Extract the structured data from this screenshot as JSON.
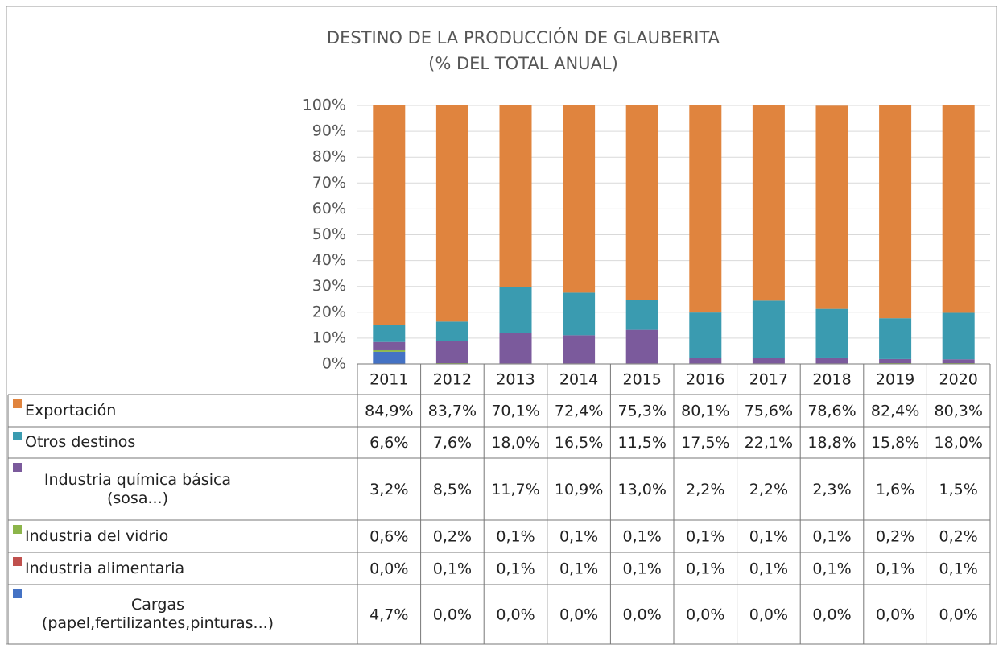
{
  "chart_data": {
    "type": "bar",
    "title": "DESTINO DE LA PRODUCCIÓN DE GLAUBERITA",
    "subtitle": "(% DEL TOTAL ANUAL)",
    "categories": [
      "2011",
      "2012",
      "2013",
      "2014",
      "2015",
      "2016",
      "2017",
      "2018",
      "2019",
      "2020"
    ],
    "ylim": [
      0,
      100
    ],
    "yticks": [
      {
        "value": 0,
        "label": "0%"
      },
      {
        "value": 10,
        "label": "10%"
      },
      {
        "value": 20,
        "label": "20%"
      },
      {
        "value": 30,
        "label": "30%"
      },
      {
        "value": 40,
        "label": "40%"
      },
      {
        "value": 50,
        "label": "50%"
      },
      {
        "value": 60,
        "label": "60%"
      },
      {
        "value": 70,
        "label": "70%"
      },
      {
        "value": 80,
        "label": "80%"
      },
      {
        "value": 90,
        "label": "90%"
      },
      {
        "value": 100,
        "label": "100%"
      }
    ],
    "grid": true,
    "stacked": true,
    "series": [
      {
        "name": "Exportación",
        "color": "#e0843e",
        "values": [
          84.9,
          83.7,
          70.1,
          72.4,
          75.3,
          80.1,
          75.6,
          78.6,
          82.4,
          80.3
        ],
        "value_labels": [
          "84,9%",
          "83,7%",
          "70,1%",
          "72,4%",
          "75,3%",
          "80,1%",
          "75,6%",
          "78,6%",
          "82,4%",
          "80,3%"
        ]
      },
      {
        "name": "Otros destinos",
        "color": "#3a9bb0",
        "values": [
          6.6,
          7.6,
          18.0,
          16.5,
          11.5,
          17.5,
          22.1,
          18.8,
          15.8,
          18.0
        ],
        "value_labels": [
          "6,6%",
          "7,6%",
          "18,0%",
          "16,5%",
          "11,5%",
          "17,5%",
          "22,1%",
          "18,8%",
          "15,8%",
          "18,0%"
        ]
      },
      {
        "name": "Industria química básica (sosa...)",
        "color": "#7b5a9c",
        "values": [
          3.2,
          8.5,
          11.7,
          10.9,
          13.0,
          2.2,
          2.2,
          2.3,
          1.6,
          1.5
        ],
        "value_labels": [
          "3,2%",
          "8,5%",
          "11,7%",
          "10,9%",
          "13,0%",
          "2,2%",
          "2,2%",
          "2,3%",
          "1,6%",
          "1,5%"
        ]
      },
      {
        "name": "Industria del vidrio",
        "color": "#8cb54a",
        "values": [
          0.6,
          0.2,
          0.1,
          0.1,
          0.1,
          0.1,
          0.1,
          0.1,
          0.2,
          0.2
        ],
        "value_labels": [
          "0,6%",
          "0,2%",
          "0,1%",
          "0,1%",
          "0,1%",
          "0,1%",
          "0,1%",
          "0,1%",
          "0,2%",
          "0,2%"
        ]
      },
      {
        "name": "Industria alimentaria",
        "color": "#c0504d",
        "values": [
          0.0,
          0.1,
          0.1,
          0.1,
          0.1,
          0.1,
          0.1,
          0.1,
          0.1,
          0.1
        ],
        "value_labels": [
          "0,0%",
          "0,1%",
          "0,1%",
          "0,1%",
          "0,1%",
          "0,1%",
          "0,1%",
          "0,1%",
          "0,1%",
          "0,1%"
        ]
      },
      {
        "name": "Cargas (papel,fertilizantes,pinturas...)",
        "color": "#4472c4",
        "values": [
          4.7,
          0.0,
          0.0,
          0.0,
          0.0,
          0.0,
          0.0,
          0.0,
          0.0,
          0.0
        ],
        "value_labels": [
          "4,7%",
          "0,0%",
          "0,0%",
          "0,0%",
          "0,0%",
          "0,0%",
          "0,0%",
          "0,0%",
          "0,0%",
          "0,0%"
        ]
      }
    ]
  }
}
